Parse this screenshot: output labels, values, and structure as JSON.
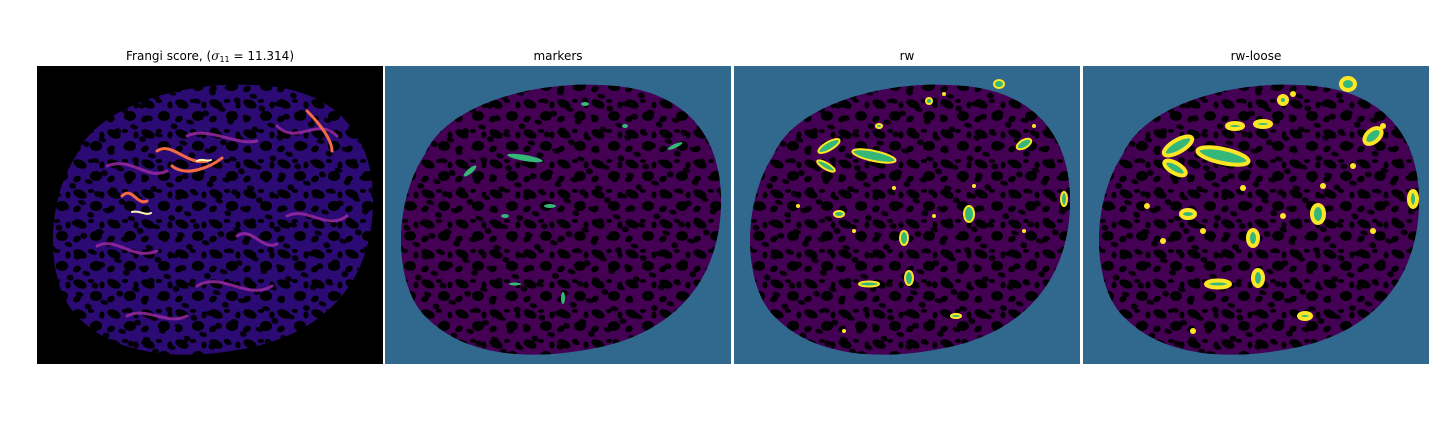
{
  "figure": {
    "panels": [
      {
        "id": "frangi",
        "title_prefix": "Frangi score, (",
        "title_sigma": "σ",
        "title_subscript": "11",
        "title_suffix": " = 11.314)",
        "colormap": "magma",
        "colors": {
          "background": "#000000",
          "low": "#2b0b73",
          "mid": "#9a2aa0",
          "high": "#f26b45",
          "peak": "#fcf9b4"
        }
      },
      {
        "id": "markers",
        "title": "markers",
        "colors": {
          "background": "#31688e",
          "region": "#440154",
          "marker": "#35b779"
        }
      },
      {
        "id": "rw",
        "title": "rw",
        "colors": {
          "background": "#31688e",
          "region": "#440154",
          "vessel_core": "#35b779",
          "vessel_edge": "#fde725"
        }
      },
      {
        "id": "rw-loose",
        "title": "rw-loose",
        "colors": {
          "background": "#31688e",
          "region": "#440154",
          "vessel_core": "#35b779",
          "vessel_edge": "#fde725"
        }
      }
    ]
  }
}
